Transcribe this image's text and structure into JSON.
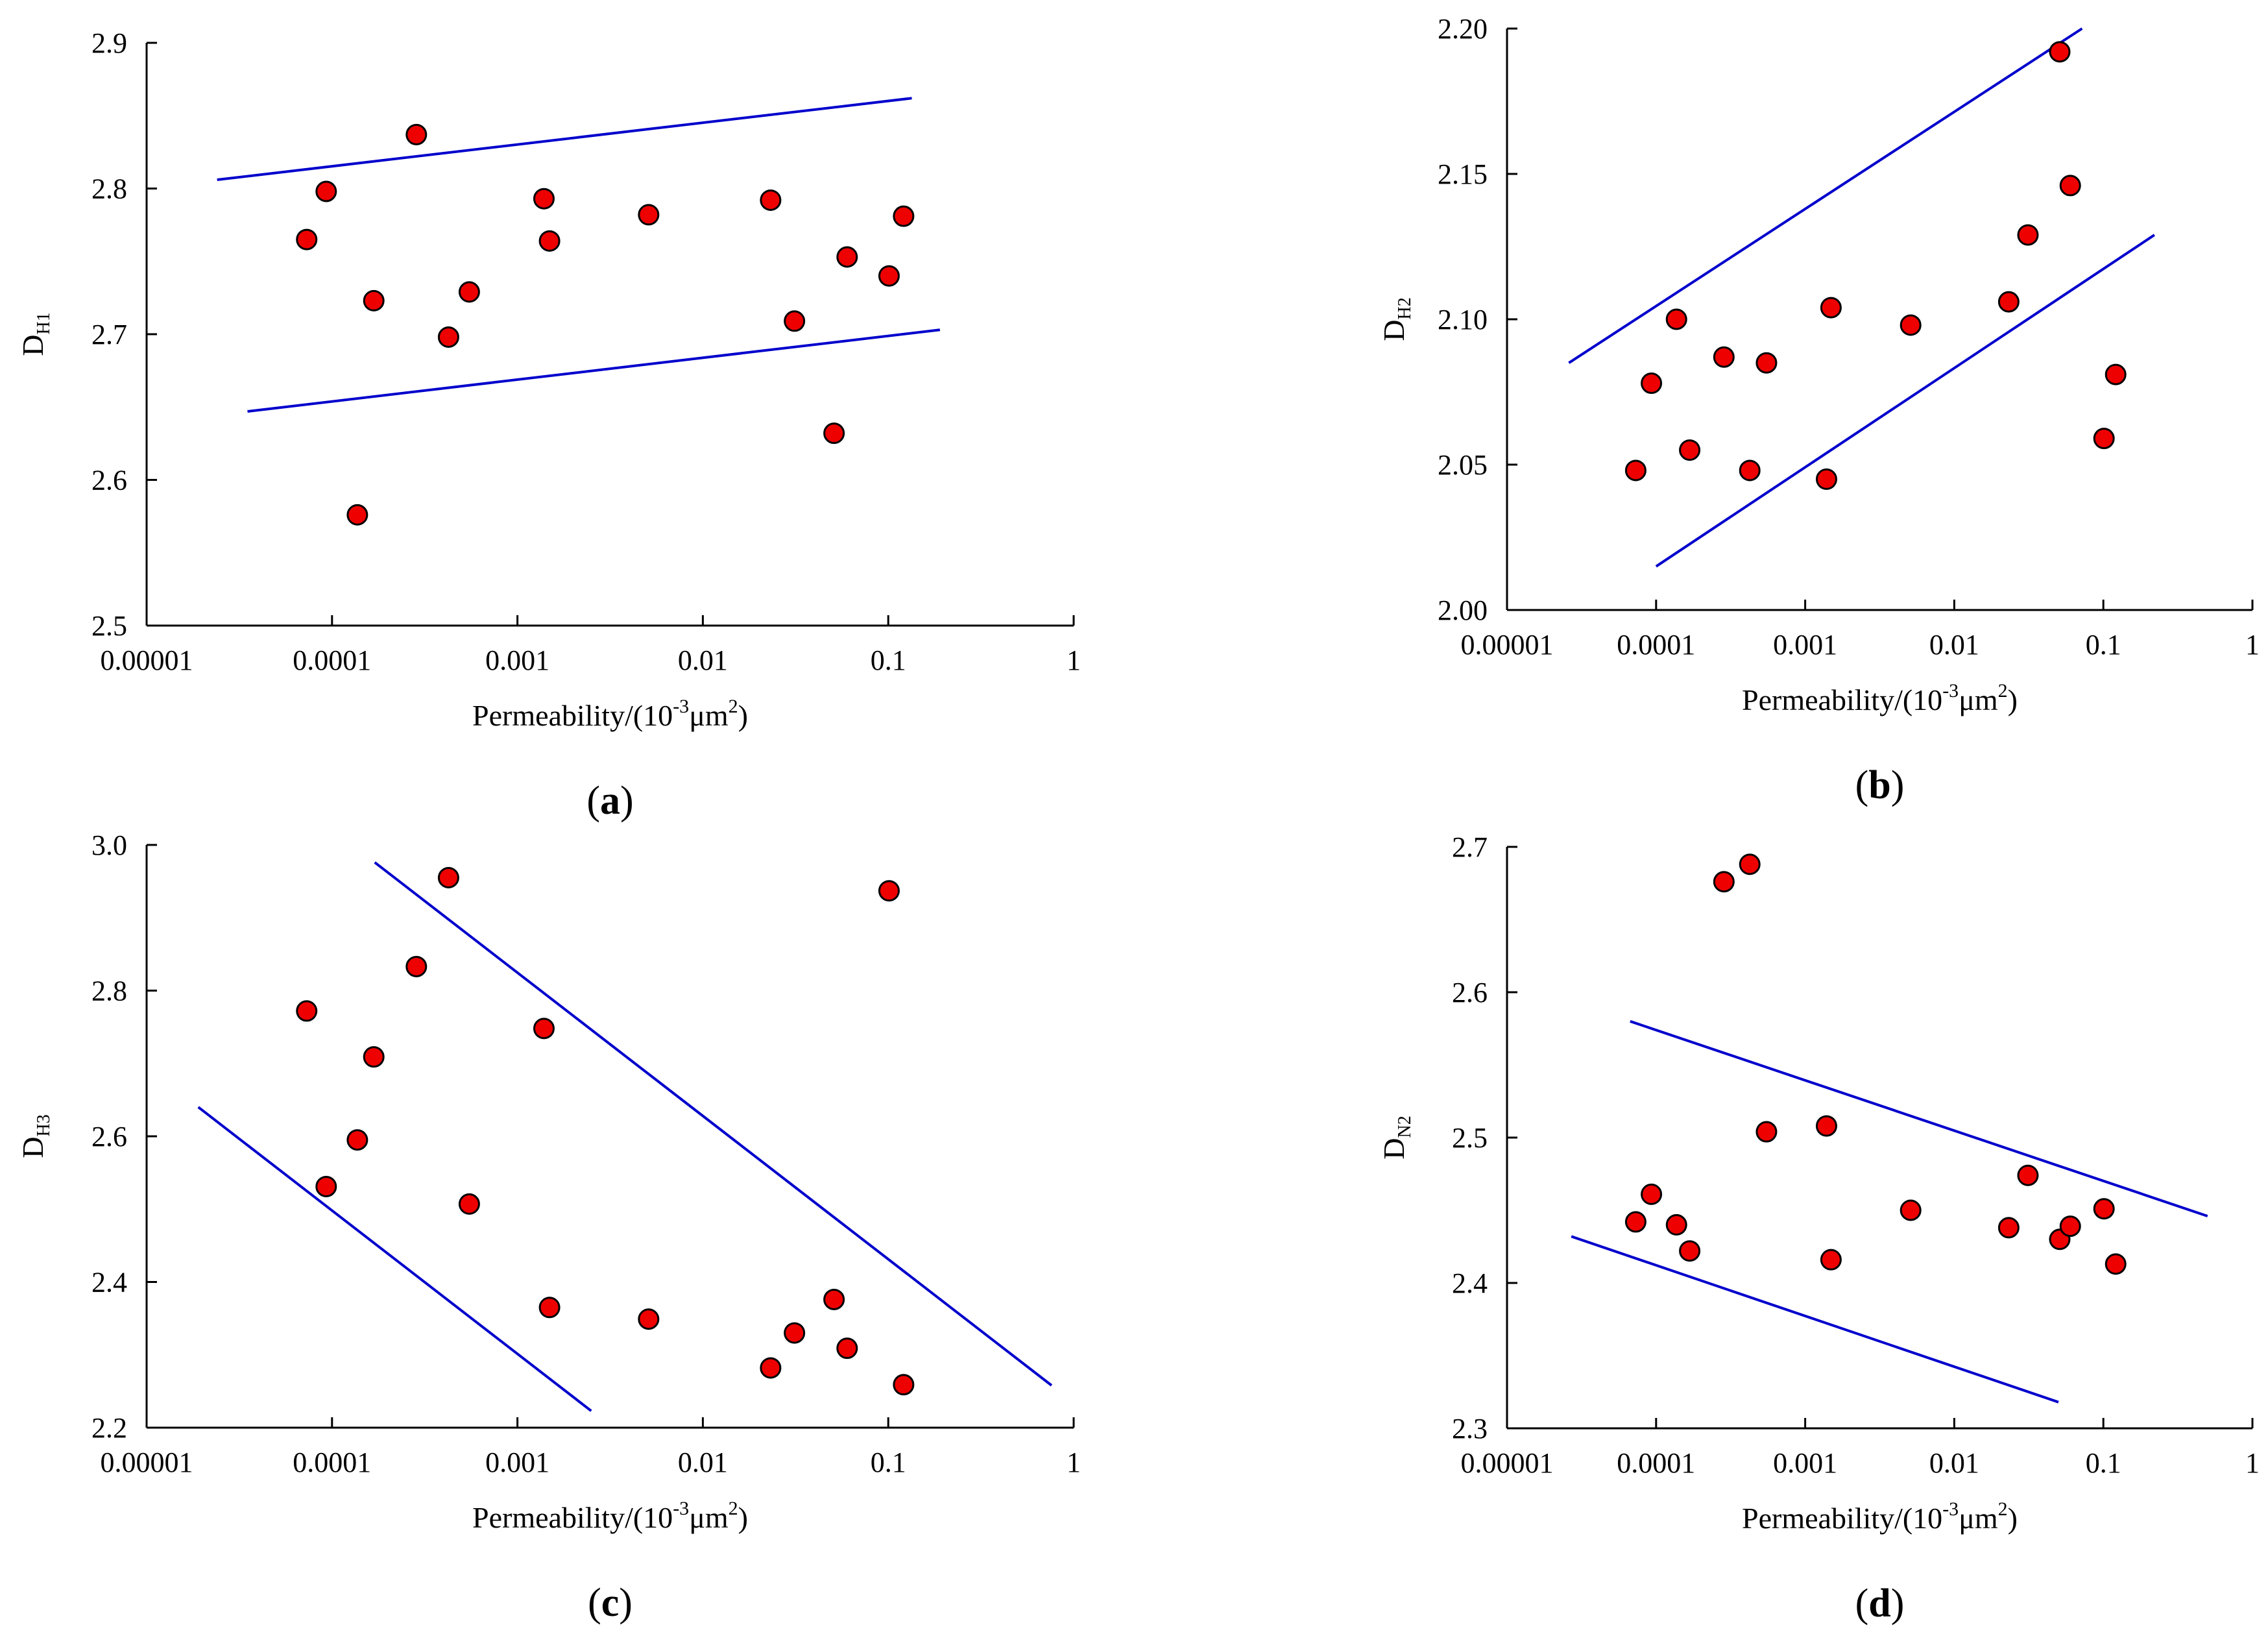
{
  "chart_data": [
    {
      "id": "a",
      "type": "scatter",
      "panel_label": "(a)",
      "panel_letter": "a",
      "xlabel": "Permeability/(10",
      "xlabel_sup": "-3",
      "xlabel_unit": "μm",
      "xlabel_unit_sup": "2",
      "xlabel_close": ")",
      "ylabel_main": "D",
      "ylabel_sub": "H1",
      "x_scale": "log",
      "xlim": [
        1e-05,
        1
      ],
      "ylim": [
        2.5,
        2.9
      ],
      "x_ticks": [
        1e-05,
        0.0001,
        0.001,
        0.01,
        0.1,
        1
      ],
      "x_tick_labels": [
        "0.00001",
        "0.0001",
        "0.001",
        "0.01",
        "0.1",
        "1"
      ],
      "y_ticks": [
        2.5,
        2.6,
        2.7,
        2.8,
        2.9
      ],
      "y_tick_labels": [
        "2.5",
        "2.6",
        "2.7",
        "2.8",
        "2.9"
      ],
      "points": {
        "x": [
          7.3e-05,
          9.3e-05,
          0.000137,
          0.000168,
          0.000285,
          0.000425,
          0.00055,
          0.00139,
          0.00149,
          0.0051,
          0.0232,
          0.0312,
          0.051,
          0.06,
          0.101,
          0.121
        ],
        "y": [
          2.765,
          2.798,
          2.576,
          2.723,
          2.837,
          2.698,
          2.729,
          2.793,
          2.764,
          2.782,
          2.792,
          2.709,
          2.632,
          2.753,
          2.74,
          2.781
        ]
      },
      "lines": [
        {
          "x": [
            2.4e-05,
            0.134
          ],
          "y": [
            2.806,
            2.862
          ]
        },
        {
          "x": [
            3.5e-05,
            0.19
          ],
          "y": [
            2.647,
            2.703
          ]
        }
      ],
      "marker_color": "#ee0000",
      "line_color": "#0000cc"
    },
    {
      "id": "b",
      "type": "scatter",
      "panel_label": "(b)",
      "panel_letter": "b",
      "xlabel": "Permeability/(10",
      "xlabel_sup": "-3",
      "xlabel_unit": "μm",
      "xlabel_unit_sup": "2",
      "xlabel_close": ")",
      "ylabel_main": "D",
      "ylabel_sub": "H2",
      "x_scale": "log",
      "xlim": [
        1e-05,
        1
      ],
      "ylim": [
        2.0,
        2.2
      ],
      "x_ticks": [
        1e-05,
        0.0001,
        0.001,
        0.01,
        0.1,
        1
      ],
      "x_tick_labels": [
        "0.00001",
        "0.0001",
        "0.001",
        "0.01",
        "0.1",
        "1"
      ],
      "y_ticks": [
        2.0,
        2.05,
        2.1,
        2.15,
        2.2
      ],
      "y_tick_labels": [
        "2.00",
        "2.05",
        "2.10",
        "2.15",
        "2.20"
      ],
      "points": {
        "x": [
          7.3e-05,
          9.3e-05,
          0.000137,
          0.000168,
          0.000285,
          0.000425,
          0.00055,
          0.00139,
          0.00149,
          0.0051,
          0.0232,
          0.0312,
          0.051,
          0.06,
          0.101,
          0.121
        ],
        "y": [
          2.048,
          2.078,
          2.1,
          2.055,
          2.087,
          2.048,
          2.085,
          2.045,
          2.104,
          2.098,
          2.106,
          2.129,
          2.192,
          2.146,
          2.059,
          2.081
        ]
      },
      "lines": [
        {
          "x": [
            2.6e-05,
            0.072
          ],
          "y": [
            2.085,
            2.2
          ]
        },
        {
          "x": [
            0.0001,
            0.22
          ],
          "y": [
            2.015,
            2.129
          ]
        }
      ],
      "marker_color": "#ee0000",
      "line_color": "#0000cc"
    },
    {
      "id": "c",
      "type": "scatter",
      "panel_label": "(c)",
      "panel_letter": "c",
      "xlabel": "Permeability/(10",
      "xlabel_sup": "-3",
      "xlabel_unit": "μm",
      "xlabel_unit_sup": "2",
      "xlabel_close": ")",
      "ylabel_main": "D",
      "ylabel_sub": "H3",
      "x_scale": "log",
      "xlim": [
        1e-05,
        1
      ],
      "ylim": [
        2.2,
        3.0
      ],
      "x_ticks": [
        1e-05,
        0.0001,
        0.001,
        0.01,
        0.1,
        1
      ],
      "x_tick_labels": [
        "0.00001",
        "0.0001",
        "0.001",
        "0.01",
        "0.1",
        "1"
      ],
      "y_ticks": [
        2.2,
        2.4,
        2.6,
        2.8,
        3.0
      ],
      "y_tick_labels": [
        "2.2",
        "2.4",
        "2.6",
        "2.8",
        "3.0"
      ],
      "points": {
        "x": [
          7.3e-05,
          9.3e-05,
          0.000137,
          0.000168,
          0.000285,
          0.000425,
          0.00055,
          0.00139,
          0.00149,
          0.0051,
          0.0232,
          0.0312,
          0.051,
          0.06,
          0.101,
          0.121
        ],
        "y": [
          2.772,
          2.531,
          2.595,
          2.709,
          2.833,
          2.955,
          2.507,
          2.748,
          2.365,
          2.349,
          2.282,
          2.33,
          2.376,
          2.309,
          2.937,
          2.259
        ]
      },
      "lines": [
        {
          "x": [
            1.9e-05,
            0.0025
          ],
          "y": [
            2.64,
            2.223
          ]
        },
        {
          "x": [
            0.00017,
            0.76
          ],
          "y": [
            2.976,
            2.258
          ]
        }
      ],
      "marker_color": "#ee0000",
      "line_color": "#0000cc"
    },
    {
      "id": "d",
      "type": "scatter",
      "panel_label": "(d)",
      "panel_letter": "d",
      "xlabel": "Permeability/(10",
      "xlabel_sup": "-3",
      "xlabel_unit": "μm",
      "xlabel_unit_sup": "2",
      "xlabel_close": ")",
      "ylabel_main": "D",
      "ylabel_sub": "N2",
      "x_scale": "log",
      "xlim": [
        1e-05,
        1
      ],
      "ylim": [
        2.3,
        2.7
      ],
      "x_ticks": [
        1e-05,
        0.0001,
        0.001,
        0.01,
        0.1,
        1
      ],
      "x_tick_labels": [
        "0.00001",
        "0.0001",
        "0.001",
        "0.01",
        "0.1",
        "1"
      ],
      "y_ticks": [
        2.3,
        2.4,
        2.5,
        2.6,
        2.7
      ],
      "y_tick_labels": [
        "2.3",
        "2.4",
        "2.5",
        "2.6",
        "2.7"
      ],
      "points": {
        "x": [
          7.3e-05,
          9.3e-05,
          0.000137,
          0.000168,
          0.000285,
          0.000425,
          0.00055,
          0.00139,
          0.00149,
          0.0051,
          0.0232,
          0.0312,
          0.051,
          0.06,
          0.101,
          0.121
        ],
        "y": [
          2.442,
          2.461,
          2.44,
          2.422,
          2.676,
          2.688,
          2.504,
          2.508,
          2.416,
          2.45,
          2.438,
          2.474,
          2.43,
          2.439,
          2.451,
          2.413
        ]
      },
      "lines": [
        {
          "x": [
            6.7e-05,
            0.5
          ],
          "y": [
            2.58,
            2.446
          ]
        },
        {
          "x": [
            2.7e-05,
            0.05
          ],
          "y": [
            2.432,
            2.318
          ]
        }
      ],
      "marker_color": "#ee0000",
      "line_color": "#0000cc"
    }
  ]
}
